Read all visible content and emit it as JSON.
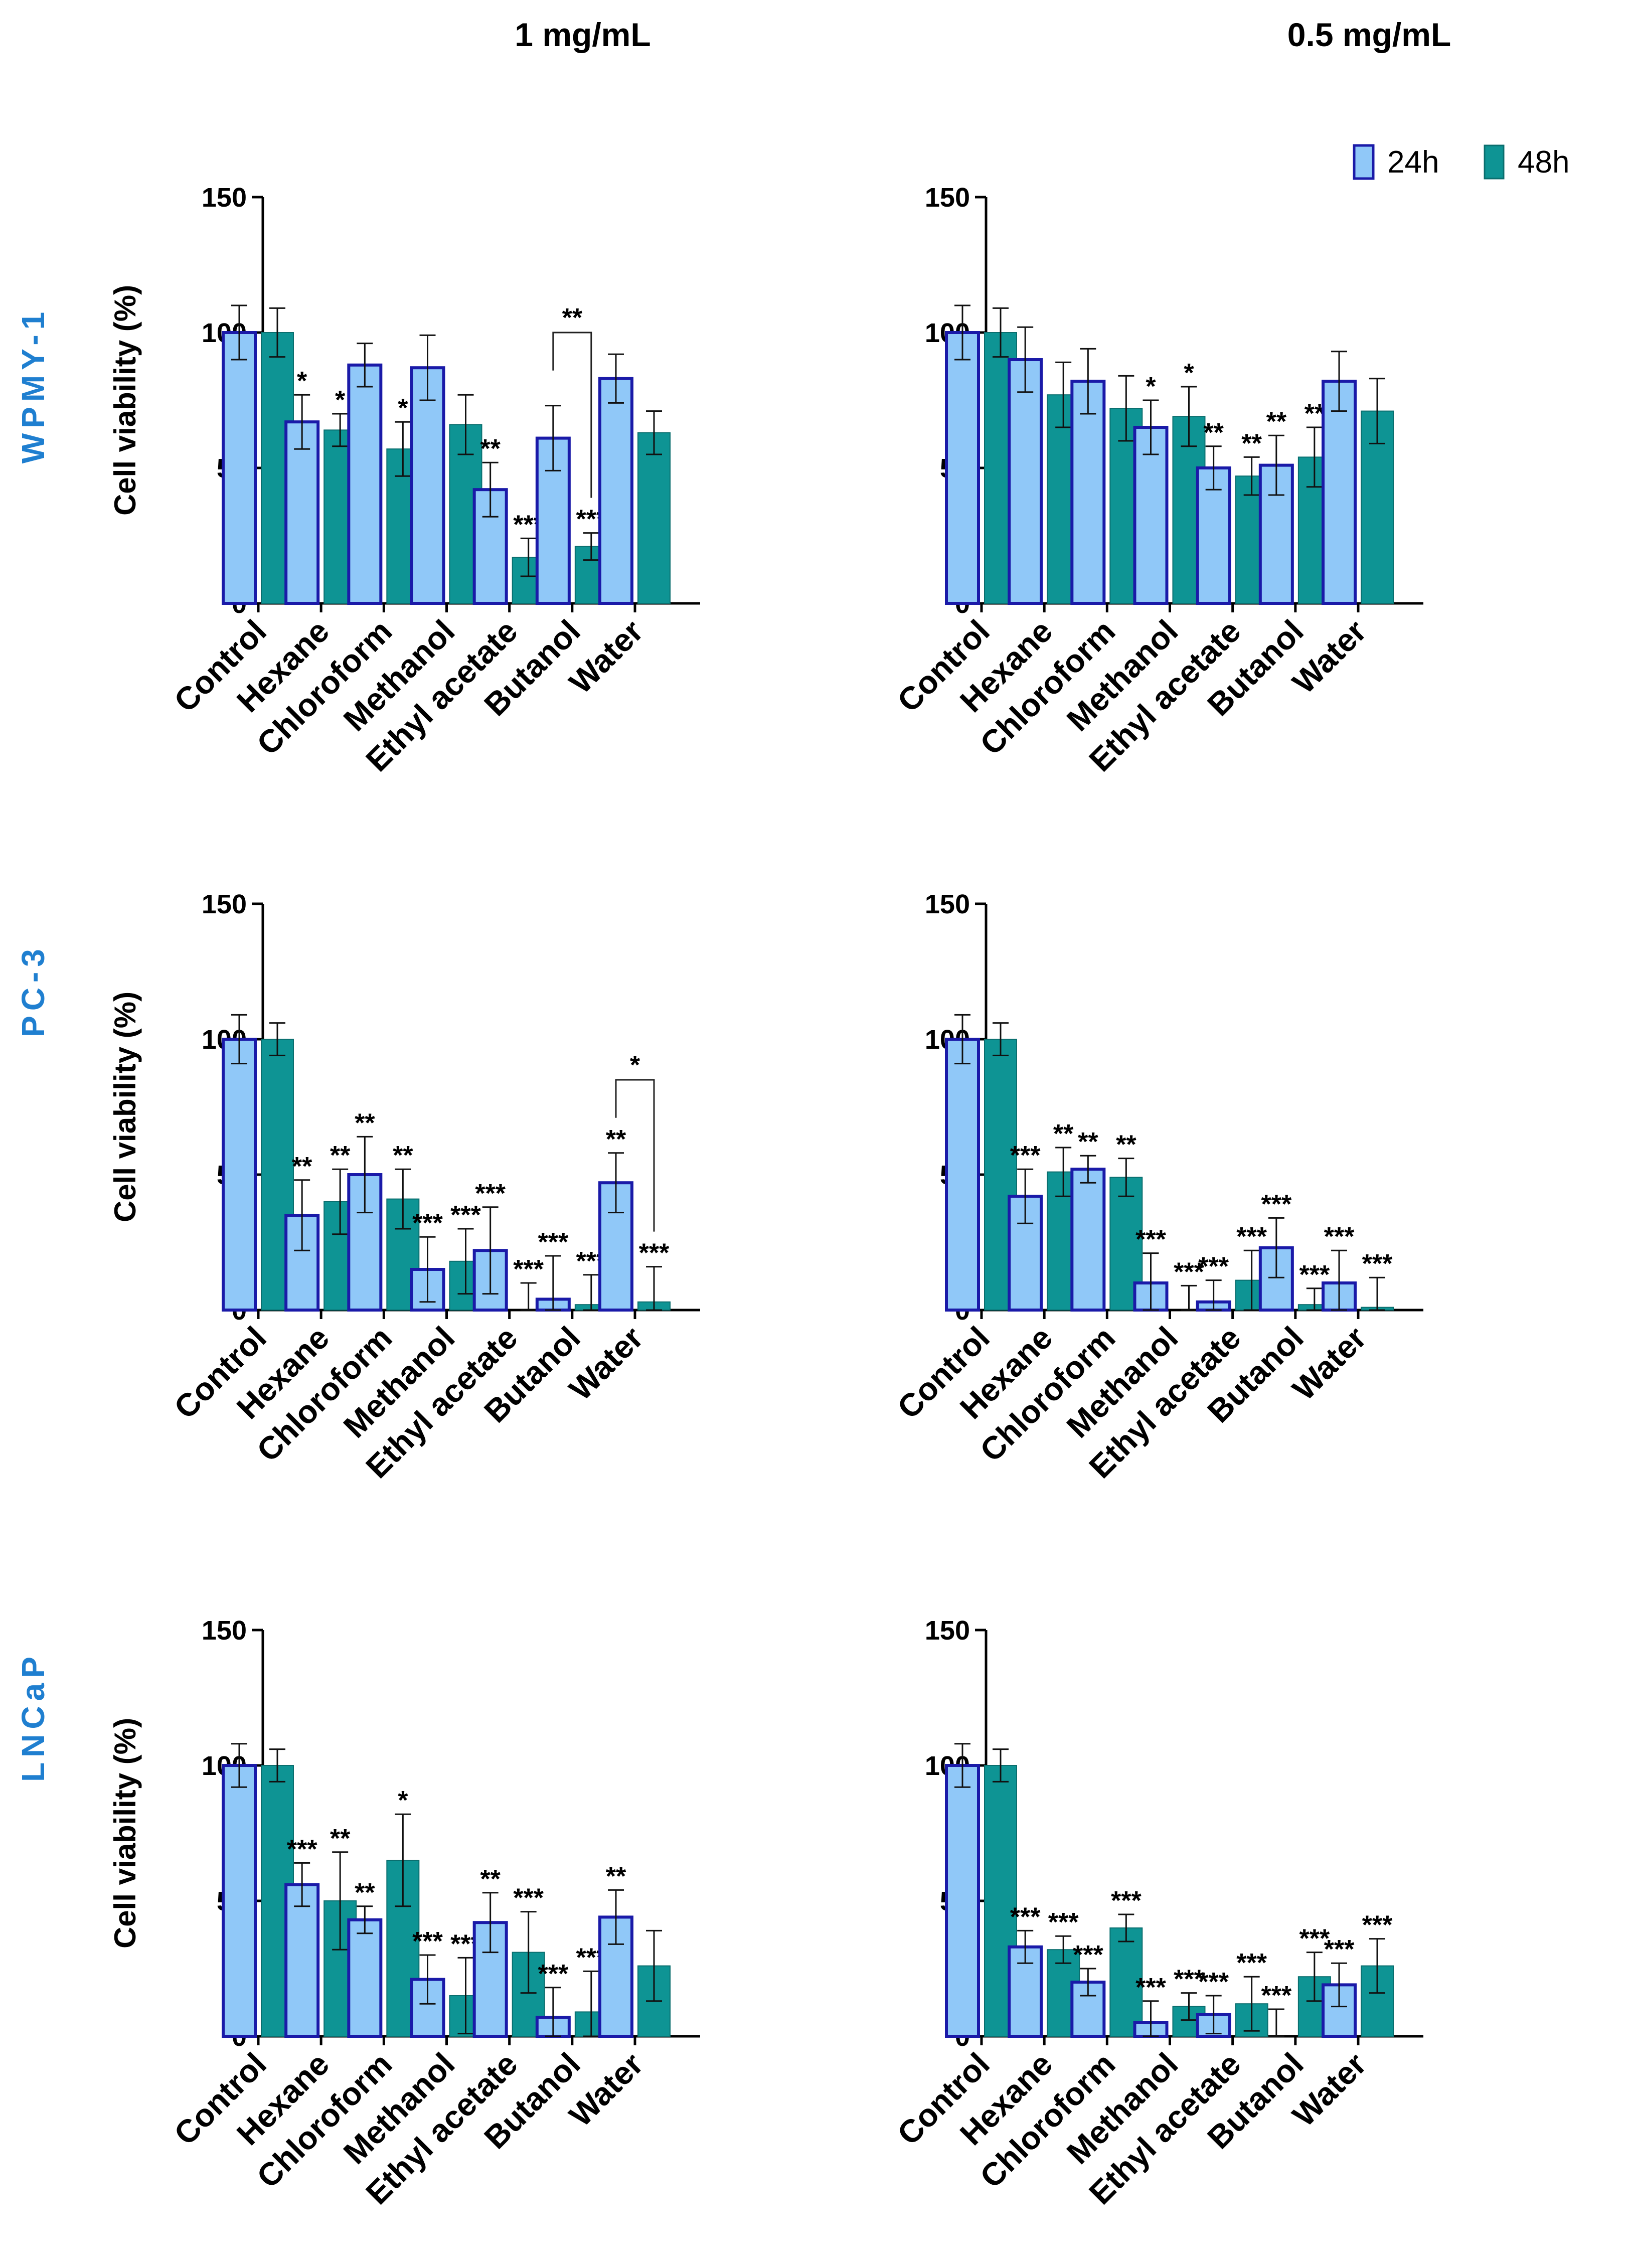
{
  "columns": [
    "1 mg/mL",
    "0.5 mg/mL"
  ],
  "rows": [
    "WPMY-1",
    "PC-3",
    "LNCaP"
  ],
  "colors": {
    "s24": "#90C8F8",
    "s24_edge": "#1A1AA8",
    "s48": "#0E9494",
    "s48_edge": "#0A6E6E",
    "row_label": "#1F7FD0"
  },
  "legend": [
    "24h",
    "48h"
  ],
  "chart_data": [
    {
      "type": "bar",
      "row": "WPMY-1",
      "column": "1 mg/mL",
      "ylabel": "Cell viability (%)",
      "ylim": [
        0,
        150
      ],
      "yticks": [
        0,
        50,
        100,
        150
      ],
      "categories": [
        "Control",
        "Hexane",
        "Chloroform",
        "Methanol",
        "Ethyl acetate",
        "Butanol",
        "Water"
      ],
      "series": [
        {
          "name": "24h",
          "values": [
            100,
            67,
            88,
            87,
            42,
            61,
            83
          ],
          "errors": [
            10,
            10,
            8,
            12,
            10,
            12,
            9
          ],
          "sig": [
            "",
            "*",
            "",
            "",
            "**",
            "",
            ""
          ]
        },
        {
          "name": "48h",
          "values": [
            100,
            64,
            57,
            66,
            17,
            21,
            63
          ],
          "errors": [
            9,
            6,
            10,
            11,
            7,
            5,
            8
          ],
          "sig": [
            "",
            "*",
            "*",
            "",
            "***",
            "***",
            ""
          ]
        }
      ],
      "bracket": {
        "category": "Butanol",
        "label": "**"
      }
    },
    {
      "type": "bar",
      "row": "WPMY-1",
      "column": "0.5 mg/mL",
      "ylabel": "",
      "ylim": [
        0,
        150
      ],
      "yticks": [
        0,
        50,
        100,
        150
      ],
      "categories": [
        "Control",
        "Hexane",
        "Chloroform",
        "Methanol",
        "Ethyl acetate",
        "Butanol",
        "Water"
      ],
      "series": [
        {
          "name": "24h",
          "values": [
            100,
            90,
            82,
            65,
            50,
            51,
            82
          ],
          "errors": [
            10,
            12,
            12,
            10,
            8,
            11,
            11
          ],
          "sig": [
            "",
            "",
            "",
            "*",
            "**",
            "**",
            ""
          ]
        },
        {
          "name": "48h",
          "values": [
            100,
            77,
            72,
            69,
            47,
            54,
            71
          ],
          "errors": [
            9,
            12,
            12,
            11,
            7,
            11,
            12
          ],
          "sig": [
            "",
            "",
            "",
            "*",
            "**",
            "**",
            ""
          ]
        }
      ]
    },
    {
      "type": "bar",
      "row": "PC-3",
      "column": "1 mg/mL",
      "ylabel": "Cell viability (%)",
      "ylim": [
        0,
        150
      ],
      "yticks": [
        0,
        50,
        100,
        150
      ],
      "categories": [
        "Control",
        "Hexane",
        "Chloroform",
        "Methanol",
        "Ethyl acetate",
        "Butanol",
        "Water"
      ],
      "series": [
        {
          "name": "24h",
          "values": [
            100,
            35,
            50,
            15,
            22,
            4,
            47
          ],
          "errors": [
            9,
            13,
            14,
            12,
            16,
            16,
            11
          ],
          "sig": [
            "",
            "**",
            "**",
            "***",
            "***",
            "***",
            "**"
          ]
        },
        {
          "name": "48h",
          "values": [
            100,
            40,
            41,
            18,
            0,
            2,
            3
          ],
          "errors": [
            6,
            12,
            11,
            12,
            10,
            11,
            13
          ],
          "sig": [
            "",
            "**",
            "**",
            "***",
            "***",
            "***",
            "***"
          ]
        }
      ],
      "bracket": {
        "category": "Water",
        "label": "*"
      }
    },
    {
      "type": "bar",
      "row": "PC-3",
      "column": "0.5 mg/mL",
      "ylabel": "",
      "ylim": [
        0,
        150
      ],
      "yticks": [
        0,
        50,
        100,
        150
      ],
      "categories": [
        "Control",
        "Hexane",
        "Chloroform",
        "Methanol",
        "Ethyl acetate",
        "Butanol",
        "Water"
      ],
      "series": [
        {
          "name": "24h",
          "values": [
            100,
            42,
            52,
            10,
            3,
            23,
            10
          ],
          "errors": [
            9,
            10,
            5,
            11,
            8,
            11,
            12
          ],
          "sig": [
            "",
            "***",
            "**",
            "***",
            "***",
            "***",
            "***"
          ]
        },
        {
          "name": "48h",
          "values": [
            100,
            51,
            49,
            0,
            11,
            2,
            1
          ],
          "errors": [
            6,
            9,
            7,
            9,
            11,
            6,
            11
          ],
          "sig": [
            "",
            "**",
            "**",
            "***",
            "***",
            "***",
            "***"
          ]
        }
      ]
    },
    {
      "type": "bar",
      "row": "LNCaP",
      "column": "1 mg/mL",
      "ylabel": "Cell viability (%)",
      "ylim": [
        0,
        150
      ],
      "yticks": [
        0,
        50,
        100,
        150
      ],
      "categories": [
        "Control",
        "Hexane",
        "Chloroform",
        "Methanol",
        "Ethyl acetate",
        "Butanol",
        "Water"
      ],
      "series": [
        {
          "name": "24h",
          "values": [
            100,
            56,
            43,
            21,
            42,
            7,
            44
          ],
          "errors": [
            8,
            8,
            5,
            9,
            11,
            11,
            10
          ],
          "sig": [
            "",
            "***",
            "**",
            "***",
            "**",
            "***",
            "**"
          ]
        },
        {
          "name": "48h",
          "values": [
            100,
            50,
            65,
            15,
            31,
            9,
            26
          ],
          "errors": [
            6,
            18,
            17,
            14,
            15,
            15,
            13
          ],
          "sig": [
            "",
            "**",
            "*",
            "***",
            "***",
            "***",
            ""
          ]
        }
      ]
    },
    {
      "type": "bar",
      "row": "LNCaP",
      "column": "0.5 mg/mL",
      "ylabel": "",
      "ylim": [
        0,
        150
      ],
      "yticks": [
        0,
        50,
        100,
        150
      ],
      "categories": [
        "Control",
        "Hexane",
        "Chloroform",
        "Methanol",
        "Ethyl acetate",
        "Butanol",
        "Water"
      ],
      "series": [
        {
          "name": "24h",
          "values": [
            100,
            33,
            20,
            5,
            8,
            0,
            19
          ],
          "errors": [
            8,
            6,
            5,
            8,
            7,
            10,
            8
          ],
          "sig": [
            "",
            "***",
            "***",
            "***",
            "***",
            "***",
            "***"
          ]
        },
        {
          "name": "48h",
          "values": [
            100,
            32,
            40,
            11,
            12,
            22,
            26
          ],
          "errors": [
            6,
            5,
            5,
            5,
            10,
            9,
            10
          ],
          "sig": [
            "",
            "***",
            "***",
            "***",
            "***",
            "***",
            "***"
          ]
        }
      ]
    }
  ]
}
